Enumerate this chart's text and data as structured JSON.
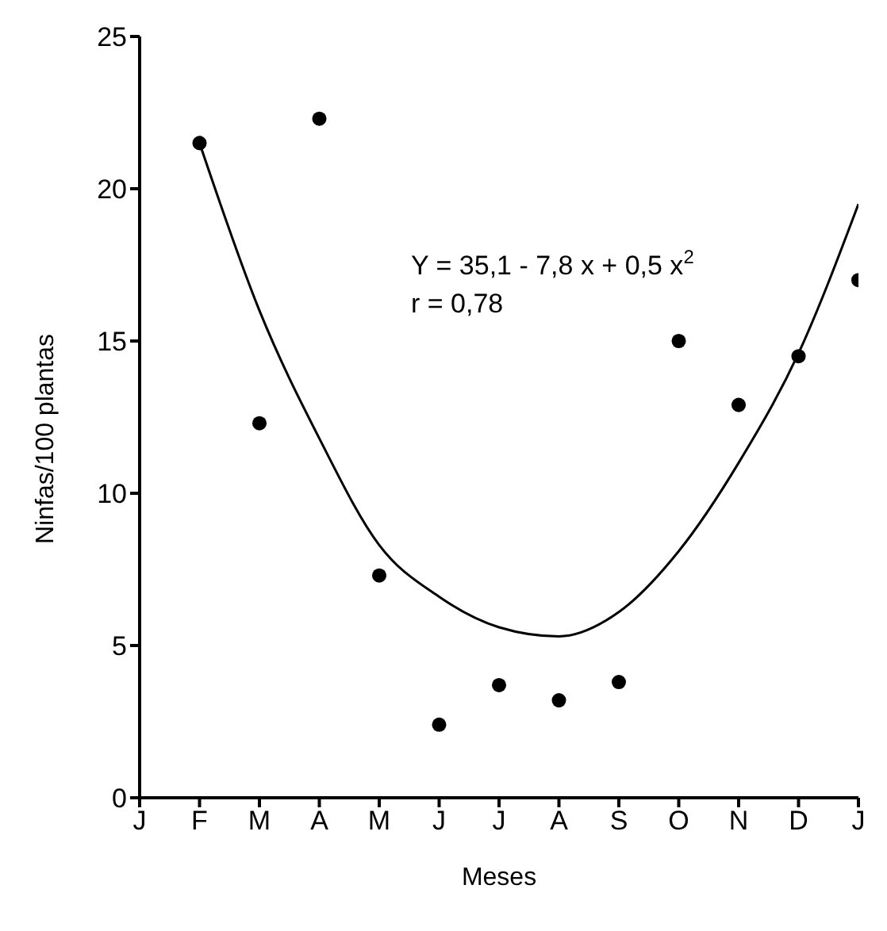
{
  "chart_data": {
    "type": "scatter",
    "xlabel": "Meses",
    "ylabel": "Ninfas/100 plantas",
    "annotations": [
      "Y = 35,1 - 7,8 x + 0,5 x$^{2}$",
      "r = 0,78"
    ],
    "categories": [
      "J",
      "F",
      "M",
      "A",
      "M",
      "J",
      "J",
      "A",
      "S",
      "O",
      "N",
      "D",
      "J"
    ],
    "ylim": [
      0,
      25
    ],
    "yticks": [
      0,
      5,
      10,
      15,
      20,
      25
    ],
    "marker": "circle",
    "series": [
      {
        "color": "#000000",
        "values": [
          null,
          21.5,
          12.3,
          22.3,
          7.3,
          2.4,
          3.7,
          3.2,
          3.8,
          15.0,
          12.9,
          14.5,
          17.0
        ]
      },
      {
        "type": "line",
        "color": "#000000",
        "line_style": "solid",
        "marker": "none",
        "values": [
          null,
          21.5,
          16.0,
          11.8,
          8.3,
          6.6,
          5.6,
          5.3,
          6.1,
          8.1,
          11.0,
          14.6,
          19.5
        ]
      }
    ]
  }
}
